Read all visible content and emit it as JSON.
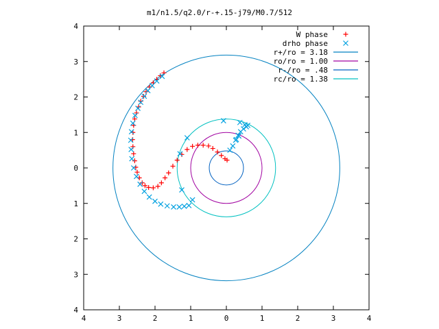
{
  "chart_data": {
    "type": "scatter",
    "title": "m1/n1.5/q2.0/r-+.15-j79/M0.7/512",
    "xlim": [
      -4,
      4
    ],
    "ylim": [
      -4,
      4
    ],
    "xticks": [
      {
        "v": -4,
        "label": "4"
      },
      {
        "v": -3,
        "label": "3"
      },
      {
        "v": -2,
        "label": "2"
      },
      {
        "v": -1,
        "label": "1"
      },
      {
        "v": 0,
        "label": "0"
      },
      {
        "v": 1,
        "label": "1"
      },
      {
        "v": 2,
        "label": "2"
      },
      {
        "v": 3,
        "label": "3"
      },
      {
        "v": 4,
        "label": "4"
      }
    ],
    "yticks": [
      {
        "v": 4,
        "label": "4"
      },
      {
        "v": 3,
        "label": "3"
      },
      {
        "v": 2,
        "label": "2"
      },
      {
        "v": 1,
        "label": "1"
      },
      {
        "v": 0,
        "label": "0"
      },
      {
        "v": -1,
        "label": "1"
      },
      {
        "v": -2,
        "label": "2"
      },
      {
        "v": -3,
        "label": "3"
      },
      {
        "v": -4,
        "label": "4"
      }
    ],
    "grid": false,
    "legend_position": "top-right",
    "circles": [
      {
        "name": "r+/ro = 3.18",
        "r": 3.18,
        "color": "#0080c0"
      },
      {
        "name": "ro/ro = 1.00",
        "r": 1.0,
        "color": "#a000a0"
      },
      {
        "name": "r-/ro = .48",
        "r": 0.48,
        "color": "#0060c0"
      },
      {
        "name": "rc/ro = 1.38",
        "r": 1.38,
        "color": "#00c0c0"
      }
    ],
    "series": [
      {
        "name": "W phase",
        "marker": "plus",
        "color": "#ff0000",
        "points": [
          [
            -1.75,
            2.68
          ],
          [
            -1.85,
            2.6
          ],
          [
            -1.95,
            2.5
          ],
          [
            -2.05,
            2.4
          ],
          [
            -2.15,
            2.28
          ],
          [
            -2.25,
            2.15
          ],
          [
            -2.32,
            2.02
          ],
          [
            -2.4,
            1.88
          ],
          [
            -2.46,
            1.72
          ],
          [
            -2.52,
            1.55
          ],
          [
            -2.57,
            1.38
          ],
          [
            -2.6,
            1.2
          ],
          [
            -2.62,
            1.0
          ],
          [
            -2.63,
            0.8
          ],
          [
            -2.62,
            0.6
          ],
          [
            -2.6,
            0.4
          ],
          [
            -2.57,
            0.2
          ],
          [
            -2.54,
            0.02
          ],
          [
            -2.5,
            -0.12
          ],
          [
            -2.44,
            -0.28
          ],
          [
            -2.36,
            -0.42
          ],
          [
            -2.28,
            -0.5
          ],
          [
            -2.18,
            -0.55
          ],
          [
            -2.05,
            -0.56
          ],
          [
            -1.92,
            -0.52
          ],
          [
            -1.82,
            -0.42
          ],
          [
            -1.72,
            -0.28
          ],
          [
            -1.62,
            -0.14
          ],
          [
            -1.5,
            0.05
          ],
          [
            -1.38,
            0.22
          ],
          [
            -1.25,
            0.38
          ],
          [
            -1.1,
            0.52
          ],
          [
            -0.95,
            0.61
          ],
          [
            -0.8,
            0.64
          ],
          [
            -0.65,
            0.64
          ],
          [
            -0.5,
            0.62
          ],
          [
            -0.38,
            0.55
          ],
          [
            -0.25,
            0.45
          ],
          [
            -0.14,
            0.35
          ],
          [
            -0.04,
            0.26
          ],
          [
            0.02,
            0.22
          ]
        ]
      },
      {
        "name": "drho phase",
        "marker": "cross",
        "color": "#00a0e0",
        "points": [
          [
            -1.8,
            2.58
          ],
          [
            -1.95,
            2.45
          ],
          [
            -2.08,
            2.32
          ],
          [
            -2.2,
            2.18
          ],
          [
            -2.3,
            2.02
          ],
          [
            -2.4,
            1.85
          ],
          [
            -2.48,
            1.68
          ],
          [
            -2.56,
            1.48
          ],
          [
            -2.62,
            1.26
          ],
          [
            -2.66,
            1.02
          ],
          [
            -2.68,
            0.78
          ],
          [
            -2.67,
            0.52
          ],
          [
            -2.65,
            0.26
          ],
          [
            -2.6,
            0.0
          ],
          [
            -2.52,
            -0.24
          ],
          [
            -2.42,
            -0.46
          ],
          [
            -2.3,
            -0.66
          ],
          [
            -2.16,
            -0.82
          ],
          [
            -2.0,
            -0.94
          ],
          [
            -1.84,
            -1.02
          ],
          [
            -1.66,
            -1.07
          ],
          [
            -1.48,
            -1.1
          ],
          [
            -1.32,
            -1.1
          ],
          [
            -1.18,
            -1.08
          ],
          [
            -1.05,
            -1.06
          ],
          [
            -1.25,
            -0.62
          ],
          [
            -1.3,
            0.4
          ],
          [
            0.1,
            0.5
          ],
          [
            0.18,
            0.62
          ],
          [
            0.26,
            0.78
          ],
          [
            0.33,
            0.92
          ],
          [
            0.4,
            1.02
          ],
          [
            0.48,
            1.1
          ],
          [
            0.56,
            1.16
          ],
          [
            0.6,
            1.2
          ],
          [
            0.35,
            0.9
          ],
          [
            0.28,
            0.8
          ],
          [
            -0.08,
            1.33
          ],
          [
            0.38,
            1.28
          ],
          [
            0.52,
            1.22
          ],
          [
            -1.1,
            0.85
          ],
          [
            -0.95,
            -0.9
          ]
        ]
      }
    ]
  }
}
